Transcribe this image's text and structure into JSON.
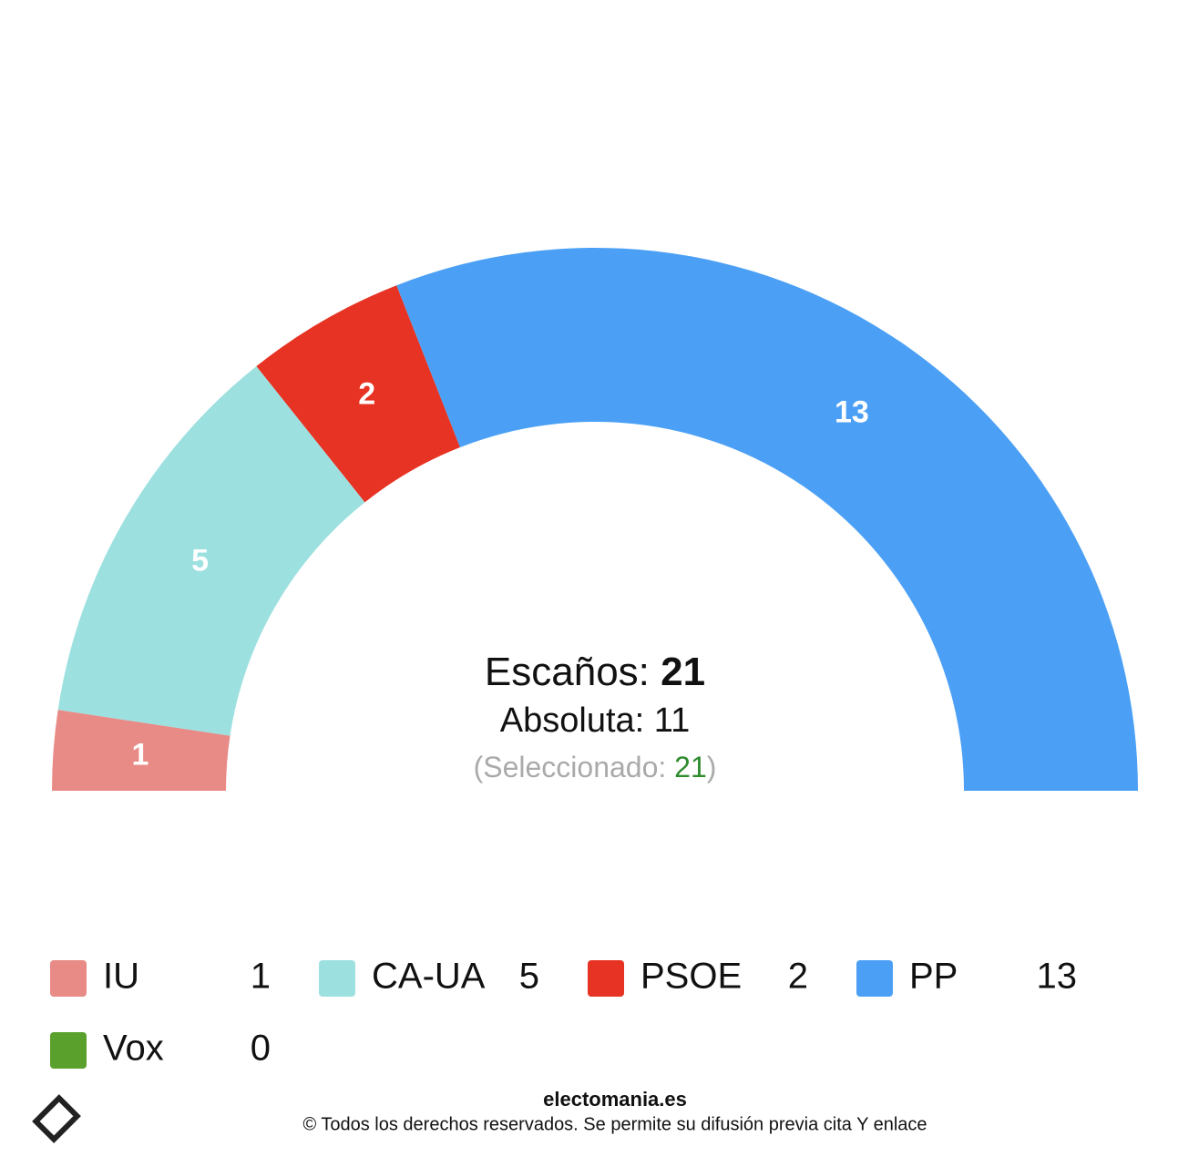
{
  "chart_data": {
    "type": "half-donut",
    "categories": [
      "IU",
      "CA-UA",
      "PSOE",
      "PP",
      "Vox"
    ],
    "values": [
      1,
      5,
      2,
      13,
      0
    ],
    "colors": [
      "#e88a85",
      "#9de0e0",
      "#e63323",
      "#4ba0f5",
      "#5aa02c"
    ],
    "seats_label": "Escaños:",
    "seats_total": 21,
    "majority_label": "Absoluta:",
    "majority": 11,
    "selected_open": "(Seleccionado:",
    "selected": 21,
    "selected_close": ")"
  },
  "footer": {
    "site": "electomania.es",
    "copyright": "© Todos los derechos reservados. Se permite su difusión previa cita Y enlace"
  }
}
